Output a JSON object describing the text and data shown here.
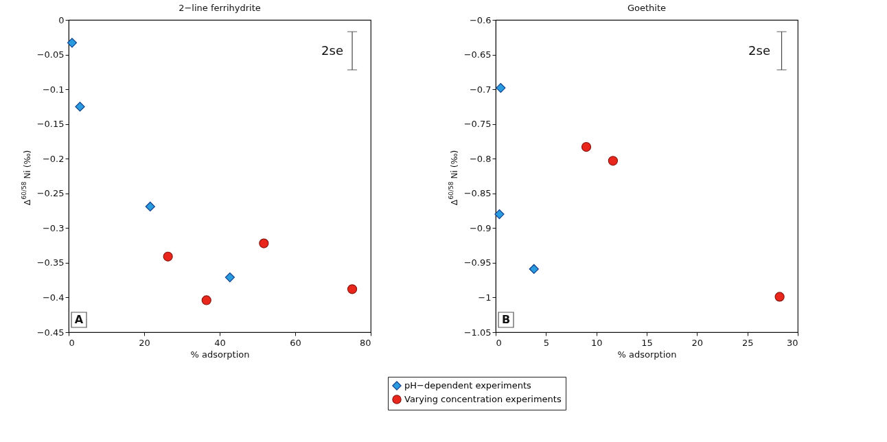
{
  "chart_data": [
    {
      "type": "scatter",
      "title": "2−line ferrihydrite",
      "xlabel": "% adsorption",
      "ylabel": "Δ$^{60/58}$Ni (‰)",
      "xlim": [
        0,
        80
      ],
      "xticks": [
        0,
        20,
        40,
        60,
        80
      ],
      "ylim": [
        -0.45,
        0
      ],
      "yticks": [
        -0.45,
        -0.4,
        -0.35,
        -0.3,
        -0.25,
        -0.2,
        -0.15,
        -0.1,
        -0.05,
        0
      ],
      "grid": false,
      "legend": "bottom",
      "series": [
        {
          "name": "pH−dependent experiments",
          "color": "#2b9be0",
          "marker": "diamond",
          "x": [
            0.9,
            3.0,
            21.6,
            42.7
          ],
          "values": [
            -0.033,
            -0.125,
            -0.269,
            -0.371
          ]
        },
        {
          "name": "Varying concentration experiments",
          "color": "#e8261c",
          "marker": "circle",
          "x": [
            26.3,
            36.5,
            51.7,
            75.1
          ],
          "values": [
            -0.341,
            -0.404,
            -0.322,
            -0.388
          ]
        },
        {
          "type": "line",
          "color": "#444444",
          "x": [
            75.1,
            75.1
          ],
          "values": [
            -0.072,
            -0.017
          ]
        }
      ],
      "annotations": [
        "2se",
        "A"
      ]
    },
    {
      "type": "scatter",
      "title": "Goethite",
      "xlabel": "% adsorption",
      "ylabel": "Δ$^{60/58}$Ni (‰)",
      "xlim": [
        0,
        30
      ],
      "xticks": [
        0,
        5,
        10,
        15,
        20,
        25,
        30
      ],
      "ylim": [
        -1.05,
        -0.6
      ],
      "yticks": [
        -1.05,
        -1,
        -0.95,
        -0.9,
        -0.85,
        -0.8,
        -0.75,
        -0.7,
        -0.65,
        -0.6
      ],
      "grid": false,
      "legend": "bottom",
      "series": [
        {
          "name": "pH−dependent experiments",
          "color": "#2b9be0",
          "marker": "diamond",
          "x": [
            0.5,
            0.37,
            3.8
          ],
          "values": [
            -0.698,
            -0.88,
            -0.959
          ]
        },
        {
          "name": "Varying concentration experiments",
          "color": "#e8261c",
          "marker": "circle",
          "x": [
            9.0,
            11.65,
            28.2
          ],
          "values": [
            -0.783,
            -0.803,
            -0.999
          ]
        },
        {
          "type": "line",
          "color": "#444444",
          "x": [
            28.4,
            28.4
          ],
          "values": [
            -0.672,
            -0.617
          ]
        }
      ],
      "annotations": [
        "2se",
        "B"
      ]
    }
  ]
}
